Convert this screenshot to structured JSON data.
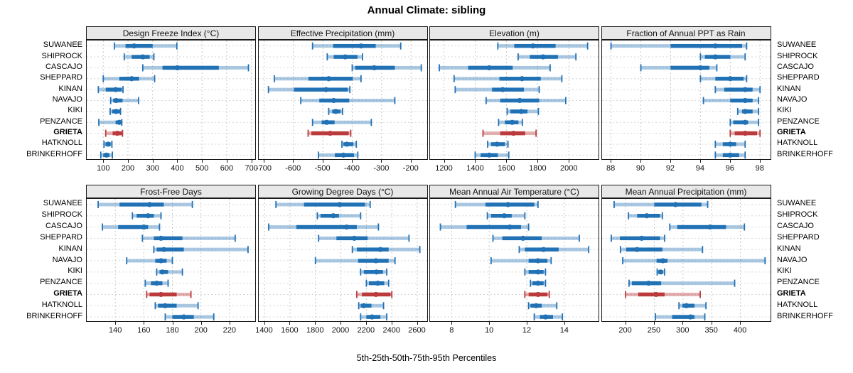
{
  "title": "Annual Climate: sibling",
  "caption": "5th-25th-50th-75th-95th Percentiles",
  "colors": {
    "primary": "#2171b5",
    "primary_light": "rgba(33,113,181,0.38)",
    "highlight": "#bb3a3c",
    "highlight_light": "rgba(187,58,60,0.40)",
    "strip_bg": "#e8e8e8",
    "grid_v": "#c8c8c8",
    "grid_h": "#d6d6d6",
    "border": "#1a1a1a"
  },
  "chart_data": {
    "type": "scatter",
    "subtype": "dot-and-interval percentile plot (5th-25th-50th-75th-95th)",
    "legend_position": "none",
    "grid": true,
    "highlight_site": "GRIETA",
    "percentile_labels": [
      "p5",
      "p25",
      "p50",
      "p75",
      "p95"
    ],
    "sites": [
      "SUWANEE",
      "SHIPROCK",
      "CASCAJO",
      "SHEPPARD",
      "KINAN",
      "NAVAJO",
      "KIKI",
      "PENZANCE",
      "GRIETA",
      "HATKNOLL",
      "BRINKERHOFF"
    ],
    "panels": [
      {
        "title": "Design Freeze Index (°C)",
        "row": 0,
        "col": 0,
        "ticks": [
          100,
          200,
          300,
          400,
          500,
          600,
          700
        ],
        "domain": [
          33,
          721
        ],
        "series": [
          [
            145,
            190,
            225,
            300,
            398
          ],
          [
            185,
            215,
            260,
            288,
            305
          ],
          [
            260,
            340,
            400,
            568,
            688
          ],
          [
            100,
            165,
            215,
            245,
            308
          ],
          [
            80,
            110,
            150,
            175,
            180
          ],
          [
            130,
            140,
            152,
            178,
            243
          ],
          [
            128,
            136,
            152,
            168,
            170
          ],
          [
            82,
            150,
            165,
            172,
            175
          ],
          [
            110,
            138,
            157,
            175,
            178
          ],
          [
            103,
            109,
            120,
            130,
            135
          ],
          [
            90,
            100,
            113,
            125,
            137
          ]
        ]
      },
      {
        "title": "Effective Precipitation (mm)",
        "row": 0,
        "col": 1,
        "ticks": [
          -700,
          -600,
          -500,
          -400,
          -300,
          -200
        ],
        "domain": [
          -718,
          -140
        ],
        "series": [
          [
            -535,
            -465,
            -370,
            -320,
            -235
          ],
          [
            -485,
            -463,
            -424,
            -382,
            -365
          ],
          [
            -400,
            -390,
            -325,
            -255,
            -165
          ],
          [
            -665,
            -549,
            -480,
            -398,
            -370
          ],
          [
            -685,
            -598,
            -489,
            -415,
            -408
          ],
          [
            -575,
            -512,
            -463,
            -410,
            -255
          ],
          [
            -480,
            -468,
            -456,
            -440,
            -433
          ],
          [
            -535,
            -504,
            -487,
            -460,
            -335
          ],
          [
            -550,
            -539,
            -475,
            -412,
            -405
          ],
          [
            -435,
            -430,
            -418,
            -396,
            -386
          ],
          [
            -515,
            -459,
            -430,
            -394,
            -381
          ]
        ]
      },
      {
        "title": "Elevation (m)",
        "row": 0,
        "col": 2,
        "ticks": [
          1200,
          1400,
          1600,
          1800,
          2000
        ],
        "domain": [
          1111,
          2199
        ],
        "series": [
          [
            1545,
            1650,
            1770,
            1915,
            2120
          ],
          [
            1675,
            1750,
            1835,
            1930,
            2045
          ],
          [
            1170,
            1355,
            1490,
            1640,
            1880
          ],
          [
            1265,
            1555,
            1700,
            1820,
            1955
          ],
          [
            1272,
            1508,
            1576,
            1712,
            1810
          ],
          [
            1470,
            1560,
            1685,
            1810,
            1980
          ],
          [
            1605,
            1625,
            1695,
            1735,
            1805
          ],
          [
            1550,
            1590,
            1637,
            1677,
            1702
          ],
          [
            1450,
            1560,
            1645,
            1720,
            1790
          ],
          [
            1480,
            1502,
            1540,
            1590,
            1610
          ],
          [
            1400,
            1435,
            1490,
            1545,
            1615
          ]
        ]
      },
      {
        "title": "Fraction of Annual PPT as Rain",
        "row": 0,
        "col": 3,
        "ticks": [
          88,
          90,
          92,
          94,
          96,
          98
        ],
        "domain": [
          87.4,
          98.8
        ],
        "series": [
          [
            88,
            92,
            95,
            96.8,
            97.1
          ],
          [
            94,
            94.3,
            95,
            96,
            97
          ],
          [
            90,
            92,
            94,
            94.6,
            95.1
          ],
          [
            94,
            95,
            96,
            96.9,
            97.1
          ],
          [
            95,
            95.6,
            97,
            97.5,
            98
          ],
          [
            94.2,
            96,
            97,
            97.5,
            97.9
          ],
          [
            96.5,
            96.8,
            97,
            97.5,
            97.9
          ],
          [
            96,
            96.2,
            97,
            97.2,
            97.9
          ],
          [
            96,
            96.3,
            97,
            97.8,
            98
          ],
          [
            95,
            95.5,
            96,
            96.4,
            97
          ],
          [
            95,
            95.5,
            96,
            96.6,
            97
          ]
        ]
      },
      {
        "title": "Frost-Free Days",
        "row": 1,
        "col": 0,
        "ticks": [
          140,
          160,
          180,
          200,
          220
        ],
        "domain": [
          120,
          239
        ],
        "series": [
          [
            128,
            143,
            164,
            174,
            194
          ],
          [
            152,
            155,
            163,
            167,
            172
          ],
          [
            131,
            142,
            160,
            163,
            171
          ],
          [
            159,
            167,
            172,
            187,
            224
          ],
          [
            167,
            169,
            174,
            188,
            233
          ],
          [
            148,
            168,
            172,
            176,
            180
          ],
          [
            169,
            171,
            173,
            177,
            187
          ],
          [
            161,
            165,
            169,
            173,
            177
          ],
          [
            162,
            164,
            172,
            183,
            193
          ],
          [
            168,
            170,
            175,
            183,
            198
          ],
          [
            175,
            180,
            188,
            195,
            209
          ]
        ]
      },
      {
        "title": "Growing Degree Days (°C)",
        "row": 1,
        "col": 1,
        "ticks": [
          1400,
          1600,
          1800,
          2000,
          2200,
          2400,
          2600
        ],
        "domain": [
          1355,
          2689
        ],
        "series": [
          [
            1490,
            1710,
            1990,
            2190,
            2230
          ],
          [
            1815,
            1840,
            1940,
            1985,
            2155
          ],
          [
            1433,
            1650,
            2045,
            2125,
            2295
          ],
          [
            1825,
            1965,
            2105,
            2210,
            2535
          ],
          [
            2090,
            2125,
            2310,
            2375,
            2620
          ],
          [
            1800,
            2135,
            2275,
            2375,
            2425
          ],
          [
            2155,
            2180,
            2280,
            2330,
            2360
          ],
          [
            2200,
            2220,
            2290,
            2340,
            2375
          ],
          [
            2125,
            2165,
            2275,
            2390,
            2400
          ],
          [
            2140,
            2155,
            2180,
            2240,
            2335
          ],
          [
            2155,
            2200,
            2245,
            2310,
            2360
          ]
        ]
      },
      {
        "title": "Mean Annual Air Temperature (°C)",
        "row": 1,
        "col": 2,
        "ticks": [
          8,
          10,
          12,
          14
        ],
        "domain": [
          6.85,
          15.9
        ],
        "series": [
          [
            8.2,
            9.8,
            11.0,
            12.4,
            12.6
          ],
          [
            9.9,
            10.1,
            10.8,
            11.2,
            11.9
          ],
          [
            7.4,
            8.8,
            11.1,
            11.7,
            12.1
          ],
          [
            10.2,
            10.7,
            11.8,
            12.8,
            14.8
          ],
          [
            11.6,
            11.9,
            12.9,
            13.7,
            15.3
          ],
          [
            10.1,
            12.1,
            12.6,
            13.1,
            13.3
          ],
          [
            11.9,
            12.1,
            12.6,
            12.9,
            13.0
          ],
          [
            12.2,
            12.3,
            12.6,
            12.9,
            13.0
          ],
          [
            11.9,
            12.1,
            12.6,
            13.1,
            13.2
          ],
          [
            12.1,
            12.2,
            12.5,
            12.8,
            13.6
          ],
          [
            12.4,
            12.7,
            13.0,
            13.4,
            13.9
          ]
        ]
      },
      {
        "title": "Mean Annual Precipitation (mm)",
        "row": 1,
        "col": 3,
        "ticks": [
          200,
          250,
          300,
          350,
          400
        ],
        "domain": [
          159,
          455
        ],
        "series": [
          [
            180,
            250,
            287,
            332,
            343
          ],
          [
            205,
            220,
            237,
            260,
            264
          ],
          [
            277,
            290,
            347,
            375,
            407
          ],
          [
            175,
            190,
            228,
            260,
            268
          ],
          [
            191,
            201,
            220,
            264,
            334
          ],
          [
            195,
            254,
            265,
            273,
            443
          ],
          [
            255,
            257,
            261,
            265,
            268
          ],
          [
            206,
            211,
            240,
            262,
            390
          ],
          [
            200,
            222,
            253,
            268,
            330
          ],
          [
            293,
            299,
            306,
            320,
            340
          ],
          [
            252,
            281,
            313,
            320,
            338
          ]
        ]
      }
    ]
  }
}
